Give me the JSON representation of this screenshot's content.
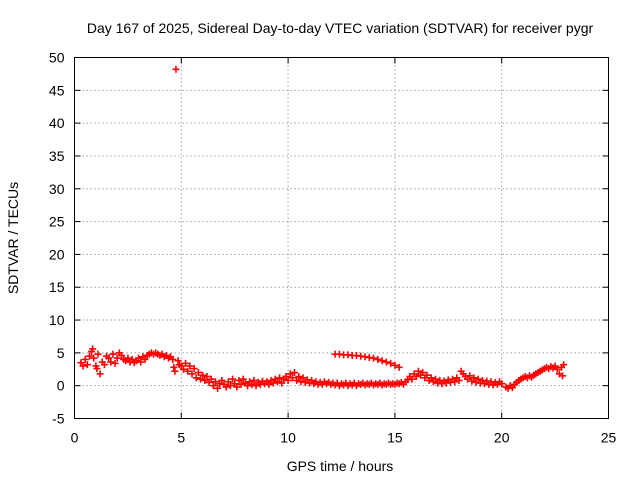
{
  "chart_data": {
    "type": "scatter",
    "title": "Day 167 of 2025, Sidereal Day-to-day VTEC variation (SDTVAR) for receiver pygr",
    "xlabel": "GPS time / hours",
    "ylabel": "SDTVAR / TECUs",
    "xlim": [
      0,
      25
    ],
    "ylim": [
      -5,
      50
    ],
    "xticks": [
      0,
      5,
      10,
      15,
      20,
      25
    ],
    "yticks": [
      -5,
      0,
      5,
      10,
      15,
      20,
      25,
      30,
      35,
      40,
      45,
      50
    ],
    "xtick_labels": [
      "0",
      "5",
      "10",
      "15",
      "20",
      "25"
    ],
    "ytick_labels": [
      "-5",
      "0",
      "5",
      "10",
      "15",
      "20",
      "25",
      "30",
      "35",
      "40",
      "45",
      "50"
    ],
    "grid": true,
    "marker": "plus",
    "color": "#ff0000",
    "series": [
      {
        "name": "SDTVAR",
        "points": [
          [
            0.3,
            3.5
          ],
          [
            0.4,
            3.0
          ],
          [
            0.5,
            4.0
          ],
          [
            0.6,
            3.2
          ],
          [
            0.7,
            4.5
          ],
          [
            0.8,
            5.2
          ],
          [
            0.85,
            5.6
          ],
          [
            0.9,
            4.2
          ],
          [
            1.0,
            3.0
          ],
          [
            1.05,
            2.6
          ],
          [
            1.1,
            4.8
          ],
          [
            1.2,
            1.8
          ],
          [
            1.3,
            3.6
          ],
          [
            1.4,
            3.2
          ],
          [
            1.5,
            4.5
          ],
          [
            1.6,
            4.2
          ],
          [
            1.7,
            3.6
          ],
          [
            1.8,
            4.8
          ],
          [
            1.9,
            3.4
          ],
          [
            2.0,
            4.2
          ],
          [
            2.1,
            5.0
          ],
          [
            2.2,
            4.6
          ],
          [
            2.3,
            4.0
          ],
          [
            2.4,
            3.8
          ],
          [
            2.5,
            4.2
          ],
          [
            2.6,
            3.6
          ],
          [
            2.7,
            4.0
          ],
          [
            2.8,
            3.5
          ],
          [
            2.9,
            3.8
          ],
          [
            3.0,
            4.2
          ],
          [
            3.1,
            3.6
          ],
          [
            3.2,
            4.4
          ],
          [
            3.3,
            4.0
          ],
          [
            3.4,
            4.6
          ],
          [
            3.5,
            4.8
          ],
          [
            3.6,
            5.0
          ],
          [
            3.7,
            4.8
          ],
          [
            3.8,
            5.0
          ],
          [
            3.9,
            4.8
          ],
          [
            4.0,
            4.6
          ],
          [
            4.1,
            4.8
          ],
          [
            4.2,
            4.4
          ],
          [
            4.3,
            4.6
          ],
          [
            4.4,
            4.2
          ],
          [
            4.5,
            4.4
          ],
          [
            4.6,
            4.0
          ],
          [
            4.65,
            2.8
          ],
          [
            4.7,
            2.2
          ],
          [
            4.75,
            48.2
          ],
          [
            4.85,
            3.8
          ],
          [
            4.9,
            3.2
          ],
          [
            5.0,
            3.0
          ],
          [
            5.1,
            2.5
          ],
          [
            5.2,
            3.4
          ],
          [
            5.3,
            2.2
          ],
          [
            5.4,
            3.0
          ],
          [
            5.5,
            1.8
          ],
          [
            5.6,
            2.6
          ],
          [
            5.7,
            1.2
          ],
          [
            5.8,
            2.0
          ],
          [
            5.9,
            1.0
          ],
          [
            6.0,
            1.6
          ],
          [
            6.1,
            0.8
          ],
          [
            6.2,
            1.4
          ],
          [
            6.3,
            0.5
          ],
          [
            6.4,
            1.0
          ],
          [
            6.5,
            0.0
          ],
          [
            6.6,
            0.6
          ],
          [
            6.7,
            -0.4
          ],
          [
            6.8,
            0.3
          ],
          [
            6.9,
            0.8
          ],
          [
            7.0,
            0.2
          ],
          [
            7.1,
            -0.2
          ],
          [
            7.2,
            0.6
          ],
          [
            7.3,
            0.0
          ],
          [
            7.4,
            1.0
          ],
          [
            7.5,
            0.3
          ],
          [
            7.6,
            -0.2
          ],
          [
            7.7,
            0.8
          ],
          [
            7.8,
            0.2
          ],
          [
            7.9,
            1.0
          ],
          [
            8.0,
            0.4
          ],
          [
            8.1,
            0.0
          ],
          [
            8.2,
            0.6
          ],
          [
            8.3,
            0.2
          ],
          [
            8.4,
            0.8
          ],
          [
            8.5,
            0.0
          ],
          [
            8.6,
            0.5
          ],
          [
            8.7,
            0.2
          ],
          [
            8.8,
            0.7
          ],
          [
            8.9,
            0.3
          ],
          [
            9.0,
            0.6
          ],
          [
            9.1,
            0.2
          ],
          [
            9.2,
            0.8
          ],
          [
            9.3,
            0.4
          ],
          [
            9.4,
            1.0
          ],
          [
            9.5,
            0.6
          ],
          [
            9.6,
            1.2
          ],
          [
            9.7,
            0.4
          ],
          [
            9.8,
            1.0
          ],
          [
            9.9,
            1.4
          ],
          [
            10.0,
            0.8
          ],
          [
            10.1,
            1.8
          ],
          [
            10.2,
            1.2
          ],
          [
            10.3,
            2.0
          ],
          [
            10.4,
            0.8
          ],
          [
            10.5,
            1.4
          ],
          [
            10.6,
            0.6
          ],
          [
            10.7,
            1.2
          ],
          [
            10.8,
            0.5
          ],
          [
            10.9,
            0.9
          ],
          [
            11.0,
            0.4
          ],
          [
            11.1,
            0.8
          ],
          [
            11.2,
            0.3
          ],
          [
            11.3,
            0.6
          ],
          [
            11.4,
            0.2
          ],
          [
            11.5,
            0.5
          ],
          [
            11.6,
            0.2
          ],
          [
            11.7,
            0.6
          ],
          [
            11.8,
            0.3
          ],
          [
            11.9,
            0.5
          ],
          [
            12.0,
            0.2
          ],
          [
            12.1,
            0.4
          ],
          [
            12.2,
            0.1
          ],
          [
            12.3,
            0.4
          ],
          [
            12.4,
            0.0
          ],
          [
            12.5,
            0.3
          ],
          [
            12.6,
            0.1
          ],
          [
            12.7,
            0.4
          ],
          [
            12.8,
            0.0
          ],
          [
            12.9,
            0.3
          ],
          [
            13.0,
            0.1
          ],
          [
            13.1,
            0.4
          ],
          [
            13.2,
            0.0
          ],
          [
            13.3,
            0.3
          ],
          [
            13.4,
            0.2
          ],
          [
            13.5,
            0.4
          ],
          [
            13.6,
            0.1
          ],
          [
            13.7,
            0.3
          ],
          [
            13.8,
            0.2
          ],
          [
            13.9,
            0.4
          ],
          [
            14.0,
            0.1
          ],
          [
            14.1,
            0.3
          ],
          [
            14.2,
            0.2
          ],
          [
            14.3,
            0.4
          ],
          [
            14.4,
            0.1
          ],
          [
            14.5,
            0.3
          ],
          [
            14.6,
            0.2
          ],
          [
            14.7,
            0.4
          ],
          [
            14.8,
            0.2
          ],
          [
            14.9,
            0.3
          ],
          [
            15.0,
            0.2
          ],
          [
            15.1,
            0.4
          ],
          [
            15.2,
            0.3
          ],
          [
            15.3,
            0.5
          ],
          [
            15.4,
            0.2
          ],
          [
            12.2,
            4.8
          ],
          [
            12.4,
            4.8
          ],
          [
            12.6,
            4.7
          ],
          [
            12.8,
            4.7
          ],
          [
            13.0,
            4.6
          ],
          [
            13.2,
            4.6
          ],
          [
            13.4,
            4.5
          ],
          [
            13.6,
            4.4
          ],
          [
            13.8,
            4.3
          ],
          [
            14.0,
            4.2
          ],
          [
            14.2,
            4.0
          ],
          [
            14.4,
            3.8
          ],
          [
            14.6,
            3.6
          ],
          [
            14.8,
            3.4
          ],
          [
            15.0,
            3.1
          ],
          [
            15.2,
            2.8
          ],
          [
            15.5,
            0.6
          ],
          [
            15.6,
            0.9
          ],
          [
            15.7,
            1.4
          ],
          [
            15.8,
            1.0
          ],
          [
            15.9,
            1.8
          ],
          [
            16.0,
            1.4
          ],
          [
            16.1,
            2.2
          ],
          [
            16.2,
            1.6
          ],
          [
            16.3,
            2.0
          ],
          [
            16.4,
            1.2
          ],
          [
            16.5,
            1.6
          ],
          [
            16.6,
            0.8
          ],
          [
            16.7,
            1.2
          ],
          [
            16.8,
            0.6
          ],
          [
            16.9,
            1.0
          ],
          [
            17.0,
            0.4
          ],
          [
            17.1,
            0.8
          ],
          [
            17.2,
            0.3
          ],
          [
            17.3,
            0.7
          ],
          [
            17.4,
            0.4
          ],
          [
            17.5,
            0.9
          ],
          [
            17.6,
            0.5
          ],
          [
            17.7,
            1.0
          ],
          [
            17.8,
            0.6
          ],
          [
            17.9,
            1.2
          ],
          [
            18.0,
            0.8
          ],
          [
            18.1,
            2.2
          ],
          [
            18.2,
            1.8
          ],
          [
            18.3,
            1.4
          ],
          [
            18.4,
            1.0
          ],
          [
            18.5,
            1.5
          ],
          [
            18.6,
            0.7
          ],
          [
            18.7,
            1.2
          ],
          [
            18.8,
            0.5
          ],
          [
            18.9,
            1.0
          ],
          [
            19.0,
            0.4
          ],
          [
            19.1,
            0.8
          ],
          [
            19.2,
            0.3
          ],
          [
            19.3,
            0.7
          ],
          [
            19.4,
            0.2
          ],
          [
            19.5,
            0.6
          ],
          [
            19.6,
            0.1
          ],
          [
            19.7,
            0.5
          ],
          [
            19.8,
            0.2
          ],
          [
            19.9,
            0.6
          ],
          [
            20.0,
            0.3
          ],
          [
            20.2,
            -0.2
          ],
          [
            20.3,
            -0.4
          ],
          [
            20.4,
            0.0
          ],
          [
            20.5,
            -0.3
          ],
          [
            20.6,
            0.2
          ],
          [
            20.7,
            0.5
          ],
          [
            20.8,
            0.8
          ],
          [
            20.9,
            1.0
          ],
          [
            21.0,
            1.2
          ],
          [
            21.1,
            1.4
          ],
          [
            21.2,
            1.2
          ],
          [
            21.3,
            1.5
          ],
          [
            21.4,
            1.3
          ],
          [
            21.5,
            1.6
          ],
          [
            21.6,
            1.8
          ],
          [
            21.7,
            2.0
          ],
          [
            21.8,
            2.2
          ],
          [
            21.9,
            2.4
          ],
          [
            22.0,
            2.6
          ],
          [
            22.1,
            2.8
          ],
          [
            22.2,
            2.6
          ],
          [
            22.3,
            2.9
          ],
          [
            22.4,
            2.7
          ],
          [
            22.5,
            3.0
          ],
          [
            22.6,
            2.5
          ],
          [
            22.7,
            1.8
          ],
          [
            22.8,
            2.8
          ],
          [
            22.85,
            1.5
          ],
          [
            22.9,
            3.2
          ]
        ]
      }
    ]
  }
}
